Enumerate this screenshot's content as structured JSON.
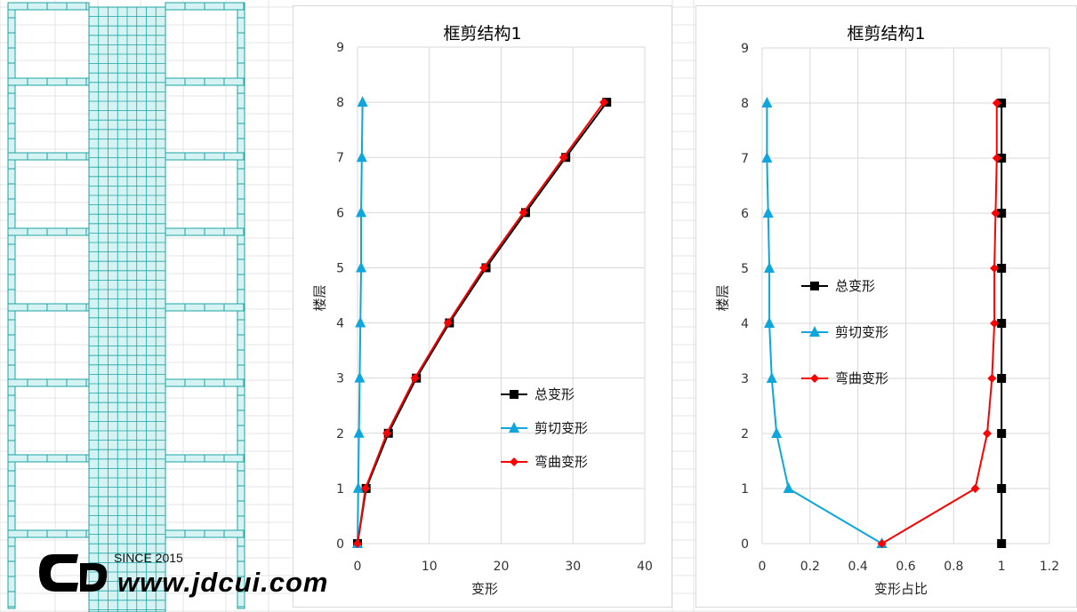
{
  "colors": {
    "total": "#000000",
    "shear": "#0ea6dd",
    "bending": "#ff0000",
    "structure": "#1fa3a3",
    "structure_fill": "#d5f3f3",
    "grid": "#d9d9d9"
  },
  "watermark": {
    "since": "SINCE 2015",
    "url": "www.jdcui.com"
  },
  "chart_data": [
    {
      "type": "line",
      "title": "框剪结构1",
      "xlabel": "变形",
      "ylabel": "楼层",
      "xlim": [
        0,
        40
      ],
      "ylim": [
        0,
        9
      ],
      "xticks": [
        0,
        10,
        20,
        30,
        40
      ],
      "yticks": [
        0,
        1,
        2,
        3,
        4,
        5,
        6,
        7,
        8,
        9
      ],
      "grid": true,
      "legend_position": "right-middle",
      "series": [
        {
          "name": "总变形",
          "marker": "square",
          "color": "#000000",
          "x": [
            0,
            1.2,
            4.3,
            8.2,
            12.8,
            17.9,
            23.4,
            29.0,
            34.7
          ],
          "y": [
            0,
            1,
            2,
            3,
            4,
            5,
            6,
            7,
            8
          ]
        },
        {
          "name": "剪切变形",
          "marker": "triangle",
          "color": "#0ea6dd",
          "x": [
            0,
            0.1,
            0.2,
            0.3,
            0.4,
            0.5,
            0.5,
            0.6,
            0.7
          ],
          "y": [
            0,
            1,
            2,
            3,
            4,
            5,
            6,
            7,
            8
          ]
        },
        {
          "name": "弯曲变形",
          "marker": "diamond",
          "color": "#ff0000",
          "x": [
            0,
            1.1,
            4.1,
            8.0,
            12.6,
            17.6,
            23.1,
            28.7,
            34.3
          ],
          "y": [
            0,
            1,
            2,
            3,
            4,
            5,
            6,
            7,
            8
          ]
        }
      ]
    },
    {
      "type": "line",
      "title": "框剪结构1",
      "xlabel": "变形占比",
      "ylabel": "楼层",
      "xlim": [
        0,
        1.2
      ],
      "ylim": [
        0,
        9
      ],
      "xticks": [
        0,
        0.2,
        0.4,
        0.6,
        0.8,
        1,
        1.2
      ],
      "yticks": [
        0,
        1,
        2,
        3,
        4,
        5,
        6,
        7,
        8,
        9
      ],
      "grid": true,
      "legend_position": "left-middle",
      "series": [
        {
          "name": "总变形",
          "marker": "square",
          "color": "#000000",
          "x": [
            1,
            1,
            1,
            1,
            1,
            1,
            1,
            1,
            1
          ],
          "y": [
            0,
            1,
            2,
            3,
            4,
            5,
            6,
            7,
            8
          ]
        },
        {
          "name": "剪切变形",
          "marker": "triangle",
          "color": "#0ea6dd",
          "x": [
            0.5,
            0.11,
            0.06,
            0.04,
            0.03,
            0.03,
            0.025,
            0.02,
            0.02
          ],
          "y": [
            0,
            1,
            2,
            3,
            4,
            5,
            6,
            7,
            8
          ]
        },
        {
          "name": "弯曲变形",
          "marker": "diamond",
          "color": "#ff0000",
          "x": [
            0.5,
            0.89,
            0.94,
            0.96,
            0.97,
            0.97,
            0.975,
            0.98,
            0.98
          ],
          "y": [
            0,
            1,
            2,
            3,
            4,
            5,
            6,
            7,
            8
          ]
        }
      ]
    }
  ]
}
